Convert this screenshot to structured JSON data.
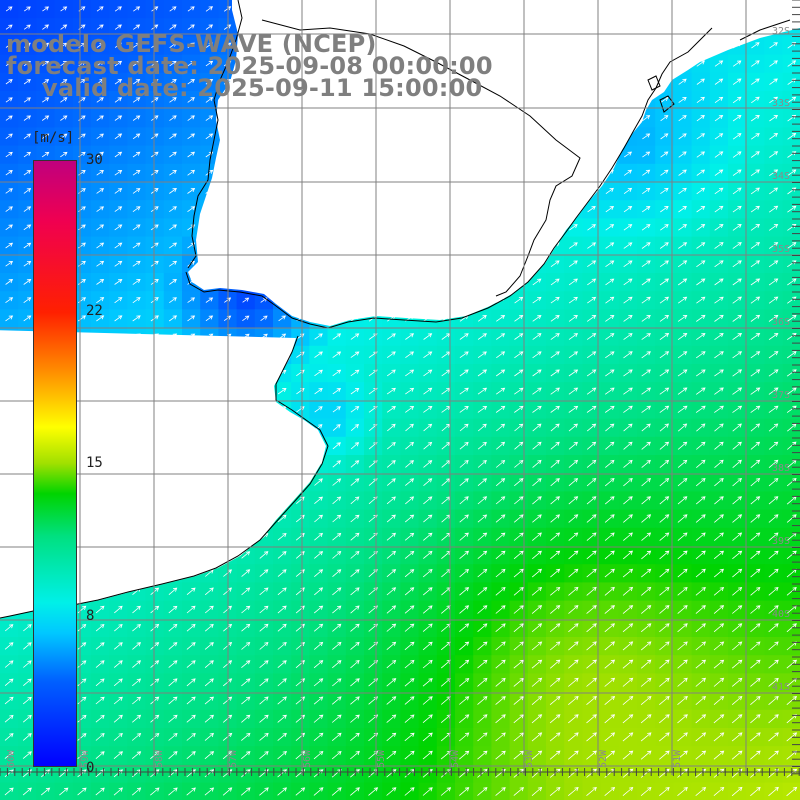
{
  "title": {
    "line1": "modelo GEFS-WAVE (NCEP)",
    "line2": "forecast date: 2025-09-08 00:00:00",
    "line3": "valid date: 2025-09-11 15:00:00"
  },
  "colorbar": {
    "unit": "[m/s]",
    "ticks": [
      {
        "label": "30",
        "value": 30
      },
      {
        "label": "22",
        "value": 22
      },
      {
        "label": "15",
        "value": 15
      },
      {
        "label": "8",
        "value": 8
      },
      {
        "label": "0",
        "value": 0
      }
    ],
    "vmin": 0,
    "vmax": 30
  },
  "axes": {
    "lat_labels": [
      "32S",
      "33S",
      "34S",
      "35S",
      "36S",
      "37S",
      "38S",
      "39S",
      "40S",
      "41S"
    ],
    "lon_labels": [
      "60W",
      "59W",
      "58W",
      "57W",
      "56W",
      "55W",
      "54W",
      "53W",
      "52W",
      "51W"
    ]
  },
  "colors": {
    "land": "#ffffff",
    "coast": "#000000",
    "grid": "#808080",
    "arrow": "#ffffff",
    "title": "#7f7f7f"
  }
}
